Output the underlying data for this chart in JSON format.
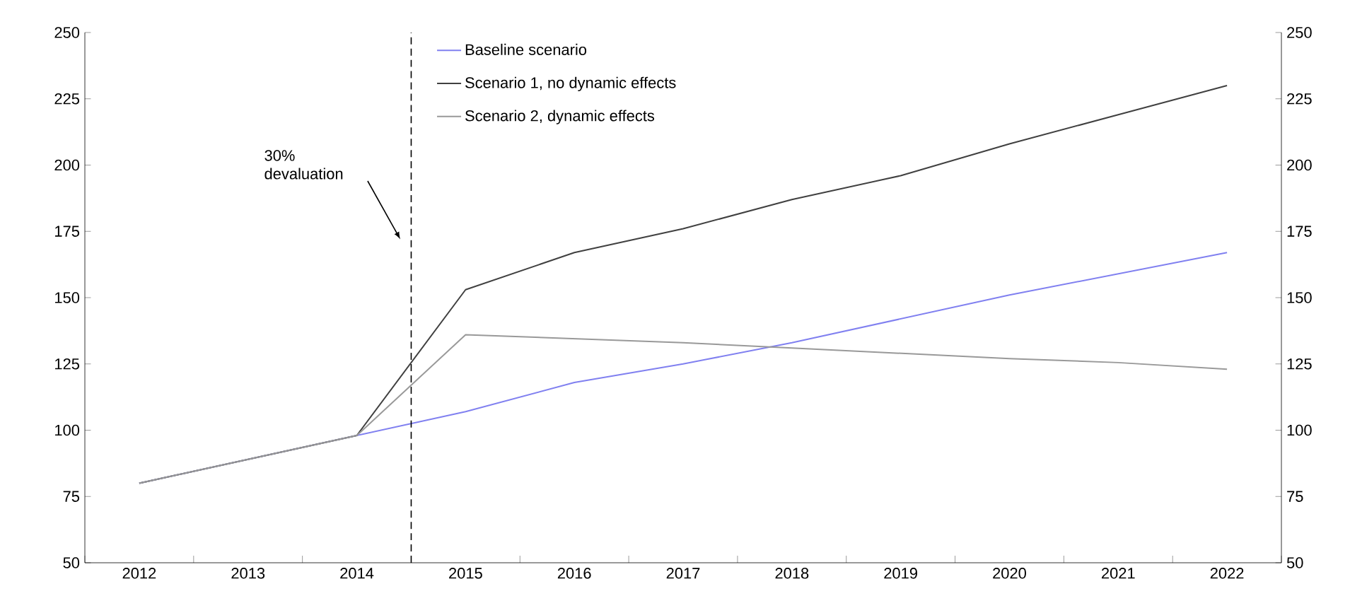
{
  "chart_data": {
    "type": "line",
    "x": [
      2012,
      2013,
      2014,
      2015,
      2016,
      2017,
      2018,
      2019,
      2020,
      2021,
      2022
    ],
    "series": [
      {
        "name": "Baseline scenario",
        "color": "#8080f0",
        "values": [
          80,
          89,
          98,
          107,
          118,
          125,
          133,
          142,
          151,
          159,
          167
        ]
      },
      {
        "name": "Scenario 1, no dynamic effects",
        "color": "#404040",
        "values": [
          80,
          89,
          98,
          153,
          167,
          176,
          187,
          196,
          208,
          219,
          230
        ]
      },
      {
        "name": "Scenario 2, dynamic effects",
        "color": "#999999",
        "values": [
          80,
          89,
          98,
          136,
          134.5,
          133,
          131,
          129,
          127,
          125.5,
          123
        ]
      }
    ],
    "xlim": [
      2011.5,
      2022.5
    ],
    "xticks": [
      2012,
      2013,
      2014,
      2015,
      2016,
      2017,
      2018,
      2019,
      2020,
      2021,
      2022
    ],
    "ylim": [
      50,
      250
    ],
    "yticks": [
      50,
      75,
      100,
      125,
      150,
      175,
      200,
      225,
      250
    ],
    "y2lim": [
      50,
      250
    ],
    "y2ticks": [
      50,
      75,
      100,
      125,
      150,
      175,
      200,
      225,
      250
    ],
    "ref_lines": [
      {
        "axis": "x",
        "value": 2014.5,
        "line_style": "dashed",
        "color": "#000000"
      }
    ],
    "annotations": [
      "30% devaluation"
    ],
    "legend": "top",
    "grid": false,
    "marker": "none",
    "line_style": "solid"
  }
}
